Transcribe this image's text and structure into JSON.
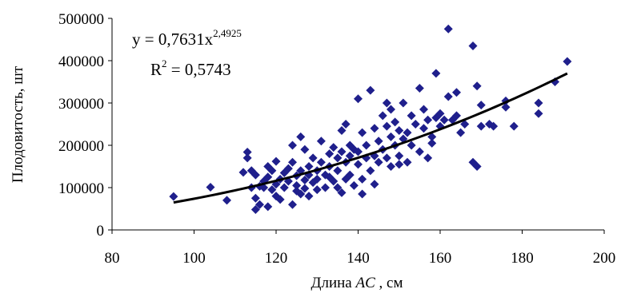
{
  "chart_data": {
    "type": "scatter",
    "xlabel_main": "Длина ",
    "xlabel_var": "AC",
    "xlabel_unit": " , см",
    "ylabel": "Плодовитость, шт",
    "xlim": [
      80,
      200
    ],
    "ylim": [
      0,
      500000
    ],
    "xticks": [
      "80",
      "100",
      "120",
      "140",
      "160",
      "180",
      "200"
    ],
    "yticks": [
      "0",
      "100000",
      "200000",
      "300000",
      "400000",
      "500000"
    ],
    "equation_base": "y = 0,7631x",
    "equation_exp": "2,4925",
    "r2_prefix": "R",
    "r2_exp": "2",
    "r2_value": " = 0,5743",
    "marker_color": "#1f1f8c",
    "trend_color": "#000000",
    "trendline": {
      "a": 0.7631,
      "b": 2.4925,
      "x_from": 95,
      "x_to": 191
    },
    "points": [
      [
        95,
        79000
      ],
      [
        104,
        101000
      ],
      [
        108,
        70000
      ],
      [
        112,
        136000
      ],
      [
        113,
        184000
      ],
      [
        113,
        170000
      ],
      [
        114,
        140000
      ],
      [
        114,
        100000
      ],
      [
        115,
        48000
      ],
      [
        115,
        75000
      ],
      [
        115,
        130000
      ],
      [
        116,
        103000
      ],
      [
        116,
        60000
      ],
      [
        117,
        115000
      ],
      [
        117,
        100000
      ],
      [
        118,
        55000
      ],
      [
        118,
        125000
      ],
      [
        118,
        150000
      ],
      [
        119,
        95000
      ],
      [
        119,
        140000
      ],
      [
        120,
        162000
      ],
      [
        120,
        108000
      ],
      [
        120,
        80000
      ],
      [
        121,
        120000
      ],
      [
        121,
        72000
      ],
      [
        122,
        135000
      ],
      [
        122,
        100000
      ],
      [
        123,
        145000
      ],
      [
        123,
        115000
      ],
      [
        124,
        60000
      ],
      [
        124,
        160000
      ],
      [
        124,
        200000
      ],
      [
        125,
        92000
      ],
      [
        125,
        105000
      ],
      [
        125,
        128000
      ],
      [
        126,
        220000
      ],
      [
        126,
        140000
      ],
      [
        126,
        85000
      ],
      [
        127,
        190000
      ],
      [
        127,
        118000
      ],
      [
        127,
        98000
      ],
      [
        128,
        150000
      ],
      [
        128,
        80000
      ],
      [
        128,
        130000
      ],
      [
        129,
        112000
      ],
      [
        129,
        170000
      ],
      [
        130,
        95000
      ],
      [
        130,
        140000
      ],
      [
        130,
        120000
      ],
      [
        131,
        210000
      ],
      [
        131,
        160000
      ],
      [
        132,
        130000
      ],
      [
        132,
        100000
      ],
      [
        133,
        180000
      ],
      [
        133,
        150000
      ],
      [
        133,
        125000
      ],
      [
        134,
        195000
      ],
      [
        134,
        115000
      ],
      [
        135,
        170000
      ],
      [
        135,
        140000
      ],
      [
        135,
        100000
      ],
      [
        136,
        235000
      ],
      [
        136,
        185000
      ],
      [
        136,
        88000
      ],
      [
        137,
        250000
      ],
      [
        137,
        160000
      ],
      [
        137,
        120000
      ],
      [
        138,
        200000
      ],
      [
        138,
        175000
      ],
      [
        138,
        130000
      ],
      [
        139,
        105000
      ],
      [
        139,
        190000
      ],
      [
        140,
        310000
      ],
      [
        140,
        155000
      ],
      [
        140,
        185000
      ],
      [
        141,
        230000
      ],
      [
        141,
        85000
      ],
      [
        141,
        120000
      ],
      [
        142,
        200000
      ],
      [
        142,
        170000
      ],
      [
        143,
        330000
      ],
      [
        143,
        140000
      ],
      [
        144,
        175000
      ],
      [
        144,
        240000
      ],
      [
        144,
        108000
      ],
      [
        145,
        160000
      ],
      [
        145,
        210000
      ],
      [
        146,
        270000
      ],
      [
        146,
        190000
      ],
      [
        147,
        300000
      ],
      [
        147,
        245000
      ],
      [
        147,
        170000
      ],
      [
        148,
        220000
      ],
      [
        148,
        285000
      ],
      [
        148,
        150000
      ],
      [
        149,
        255000
      ],
      [
        149,
        200000
      ],
      [
        150,
        175000
      ],
      [
        150,
        235000
      ],
      [
        150,
        155000
      ],
      [
        151,
        300000
      ],
      [
        151,
        215000
      ],
      [
        152,
        230000
      ],
      [
        152,
        160000
      ],
      [
        153,
        270000
      ],
      [
        153,
        200000
      ],
      [
        154,
        250000
      ],
      [
        155,
        185000
      ],
      [
        155,
        335000
      ],
      [
        156,
        285000
      ],
      [
        156,
        240000
      ],
      [
        157,
        170000
      ],
      [
        157,
        260000
      ],
      [
        158,
        220000
      ],
      [
        158,
        205000
      ],
      [
        159,
        370000
      ],
      [
        159,
        265000
      ],
      [
        160,
        245000
      ],
      [
        160,
        275000
      ],
      [
        161,
        260000
      ],
      [
        162,
        475000
      ],
      [
        162,
        315000
      ],
      [
        163,
        260000
      ],
      [
        164,
        270000
      ],
      [
        164,
        325000
      ],
      [
        165,
        230000
      ],
      [
        166,
        250000
      ],
      [
        168,
        160000
      ],
      [
        168,
        435000
      ],
      [
        169,
        340000
      ],
      [
        169,
        150000
      ],
      [
        170,
        245000
      ],
      [
        170,
        295000
      ],
      [
        172,
        250000
      ],
      [
        173,
        245000
      ],
      [
        176,
        305000
      ],
      [
        176,
        290000
      ],
      [
        178,
        245000
      ],
      [
        184,
        300000
      ],
      [
        184,
        275000
      ],
      [
        188,
        350000
      ],
      [
        191,
        398000
      ]
    ]
  }
}
